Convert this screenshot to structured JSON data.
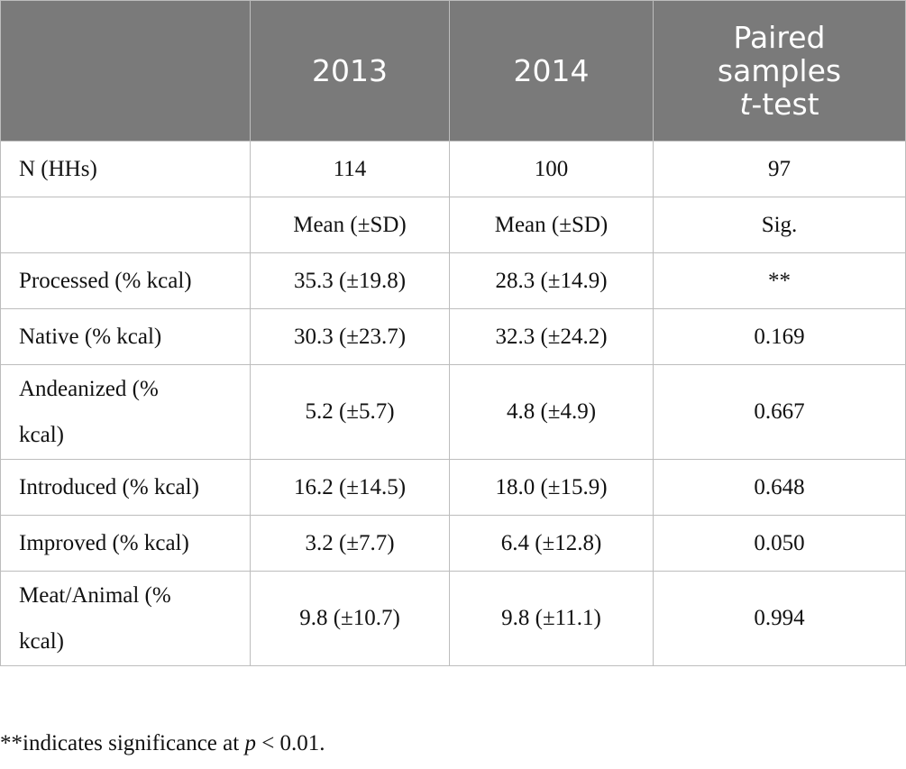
{
  "table": {
    "header": {
      "col1": "2013",
      "col2": "2014",
      "col3_line1": "Paired",
      "col3_line2": "samples",
      "col3_line3_italic": "t",
      "col3_line3_rest": "-test"
    },
    "rows": [
      {
        "label": "N (HHs)",
        "v2013": "114",
        "v2014": "100",
        "sig": "97"
      },
      {
        "label": "",
        "v2013": "Mean (±SD)",
        "v2014": "Mean (±SD)",
        "sig": "Sig."
      },
      {
        "label": "Processed (% kcal)",
        "v2013": "35.3 (±19.8)",
        "v2014": "28.3 (±14.9)",
        "sig": "**"
      },
      {
        "label": "Native (% kcal)",
        "v2013": "30.3 (±23.7)",
        "v2014": "32.3 (±24.2)",
        "sig": "0.169"
      },
      {
        "label_line1": "Andeanized (%",
        "label_line2": "kcal)",
        "v2013": "5.2 (±5.7)",
        "v2014": "4.8 (±4.9)",
        "sig": "0.667"
      },
      {
        "label": "Introduced (% kcal)",
        "v2013": "16.2 (±14.5)",
        "v2014": "18.0 (±15.9)",
        "sig": "0.648"
      },
      {
        "label": "Improved (% kcal)",
        "v2013": "3.2 (±7.7)",
        "v2014": "6.4 (±12.8)",
        "sig": "0.050"
      },
      {
        "label_line1": "Meat/Animal (%",
        "label_line2": "kcal)",
        "v2013": "9.8 (±10.7)",
        "v2014": "9.8 (±11.1)",
        "sig": "0.994"
      }
    ]
  },
  "footnote": {
    "prefix": "**indicates significance at ",
    "p_italic": "p",
    "suffix": " < 0.01."
  }
}
